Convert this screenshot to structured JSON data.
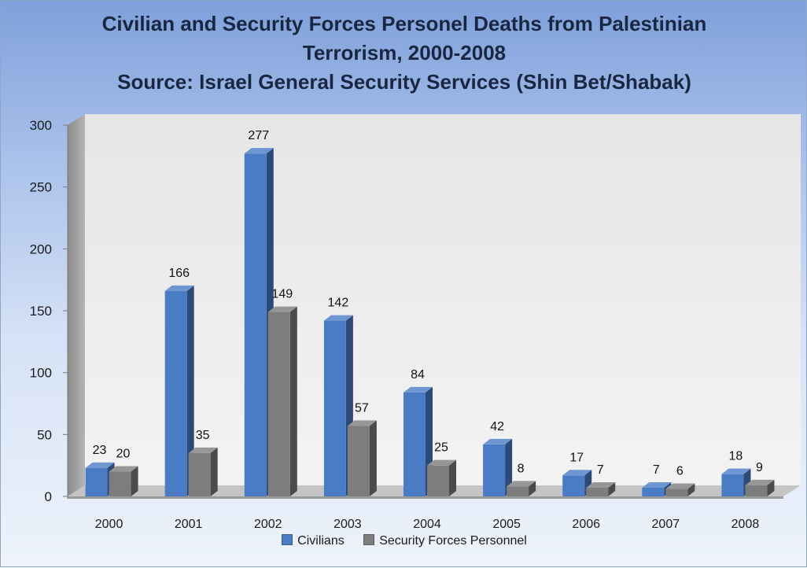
{
  "chart_data": {
    "type": "bar",
    "title_lines": [
      "Civilian and Security Forces Personel Deaths from Palestinian",
      "Terrorism, 2000-2008",
      "Source: Israel General Security Services (Shin Bet/Shabak)"
    ],
    "categories": [
      "2000",
      "2001",
      "2002",
      "2003",
      "2004",
      "2005",
      "2006",
      "2007",
      "2008"
    ],
    "series": [
      {
        "name": "Civilians",
        "values": [
          23,
          166,
          277,
          142,
          84,
          42,
          17,
          7,
          18
        ],
        "color": "#4a7cc6"
      },
      {
        "name": "Security Forces Personnel",
        "values": [
          20,
          35,
          149,
          57,
          25,
          8,
          7,
          6,
          9
        ],
        "color": "#7d7d7d"
      }
    ],
    "y_ticks": [
      "0",
      "50",
      "100",
      "150",
      "200",
      "250",
      "300"
    ],
    "ylim": [
      0,
      300
    ],
    "grid": false,
    "legend_position": "bottom",
    "style": "3d-column"
  }
}
